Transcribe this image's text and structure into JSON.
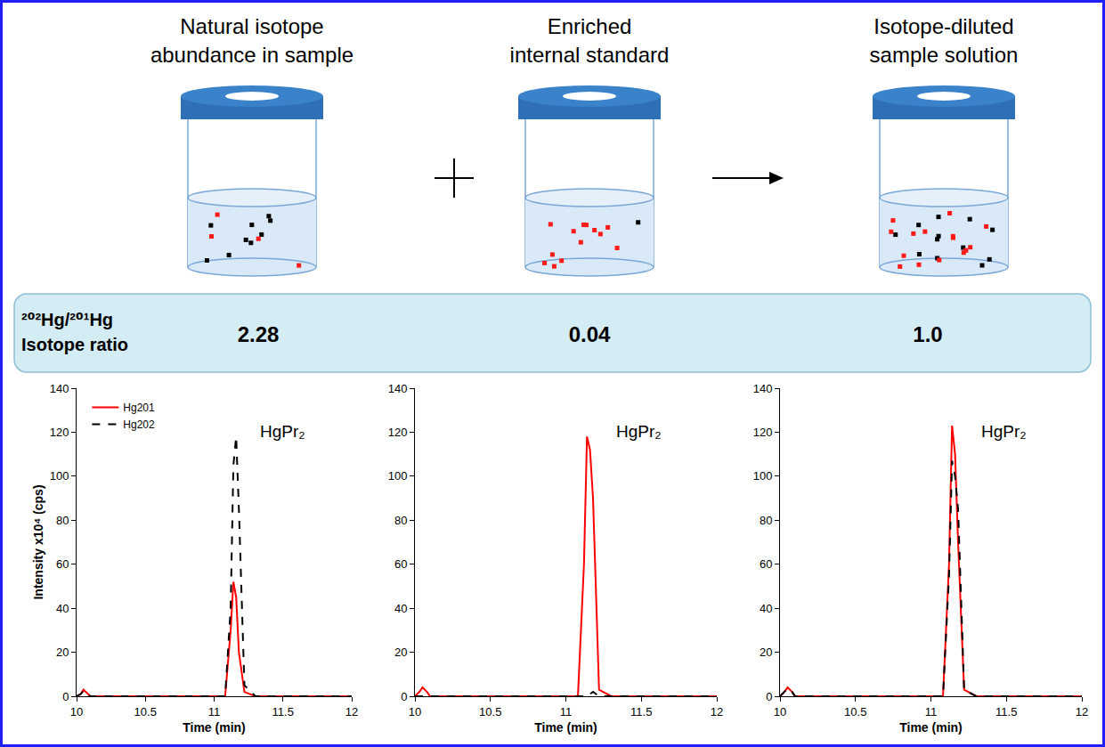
{
  "headers": [
    [
      "Natural isotope",
      "abundance in sample"
    ],
    [
      "Enriched",
      "internal standard"
    ],
    [
      "Isotope-diluted",
      "sample solution"
    ]
  ],
  "ratio": {
    "label": [
      "²⁰²Hg/²⁰¹Hg",
      "Isotope ratio"
    ],
    "values": [
      "2.28",
      "0.04",
      "1.0"
    ]
  },
  "chart_data": [
    {
      "type": "line",
      "annotation": "HgPr₂",
      "x_label": "Time (min)",
      "y_label": "Intensity x10⁴ (cps)",
      "x": [
        10,
        10.03,
        10.05,
        10.08,
        10.1,
        11.08,
        11.12,
        11.14,
        11.16,
        11.18,
        11.22,
        11.3,
        12
      ],
      "series": [
        {
          "name": "Hg201",
          "color": "#ff0000",
          "line_style": "solid",
          "values": [
            0,
            1,
            3,
            1,
            0,
            0,
            30,
            52,
            45,
            20,
            2,
            0,
            0
          ]
        },
        {
          "name": "Hg202",
          "color": "#000000",
          "line_style": "dashed",
          "values": [
            0,
            1,
            2.5,
            1,
            0,
            0,
            40,
            105,
            118,
            85,
            5,
            0,
            0
          ]
        }
      ],
      "xlim": [
        10,
        12
      ],
      "xticks": [
        10,
        10.5,
        11,
        11.5,
        12
      ],
      "ylim": [
        0,
        140
      ],
      "yticks": [
        0,
        20,
        40,
        60,
        80,
        100,
        120,
        140
      ],
      "grid": false,
      "legend": "upper left"
    },
    {
      "type": "line",
      "annotation": "HgPr₂",
      "x_label": "Time (min)",
      "x": [
        10,
        10.03,
        10.05,
        10.08,
        10.1,
        11.08,
        11.12,
        11.14,
        11.16,
        11.18,
        11.22,
        11.3,
        12
      ],
      "series": [
        {
          "name": "Hg201",
          "color": "#ff0000",
          "line_style": "solid",
          "values": [
            0,
            2,
            4,
            2,
            0,
            0,
            60,
            118,
            112,
            90,
            3,
            0,
            0
          ]
        },
        {
          "name": "Hg202",
          "color": "#000000",
          "line_style": "dashed",
          "values": [
            0,
            0,
            0,
            0,
            0,
            0,
            0,
            0,
            1,
            2,
            0,
            0,
            0
          ]
        }
      ],
      "xlim": [
        10,
        12
      ],
      "xticks": [
        10,
        10.5,
        11,
        11.5,
        12
      ],
      "ylim": [
        0,
        140
      ],
      "yticks": [
        0,
        20,
        40,
        60,
        80,
        100,
        120,
        140
      ],
      "grid": false
    },
    {
      "type": "line",
      "annotation": "HgPr₂",
      "x_label": "Time (min)",
      "x": [
        10,
        10.03,
        10.05,
        10.08,
        10.1,
        11.08,
        11.12,
        11.14,
        11.16,
        11.18,
        11.22,
        11.3,
        12
      ],
      "series": [
        {
          "name": "Hg201",
          "color": "#ff0000",
          "line_style": "solid",
          "values": [
            0,
            2,
            4,
            2,
            0,
            0,
            60,
            123,
            110,
            70,
            3,
            0,
            0
          ]
        },
        {
          "name": "Hg202",
          "color": "#000000",
          "line_style": "dashed",
          "values": [
            0,
            2,
            3.5,
            2,
            0,
            0,
            55,
            107,
            100,
            85,
            3,
            0,
            0
          ]
        }
      ],
      "xlim": [
        10,
        12
      ],
      "xticks": [
        10,
        10.5,
        11,
        11.5,
        12
      ],
      "ylim": [
        0,
        140
      ],
      "yticks": [
        0,
        20,
        40,
        60,
        80,
        100,
        120,
        140
      ],
      "grid": false
    }
  ]
}
